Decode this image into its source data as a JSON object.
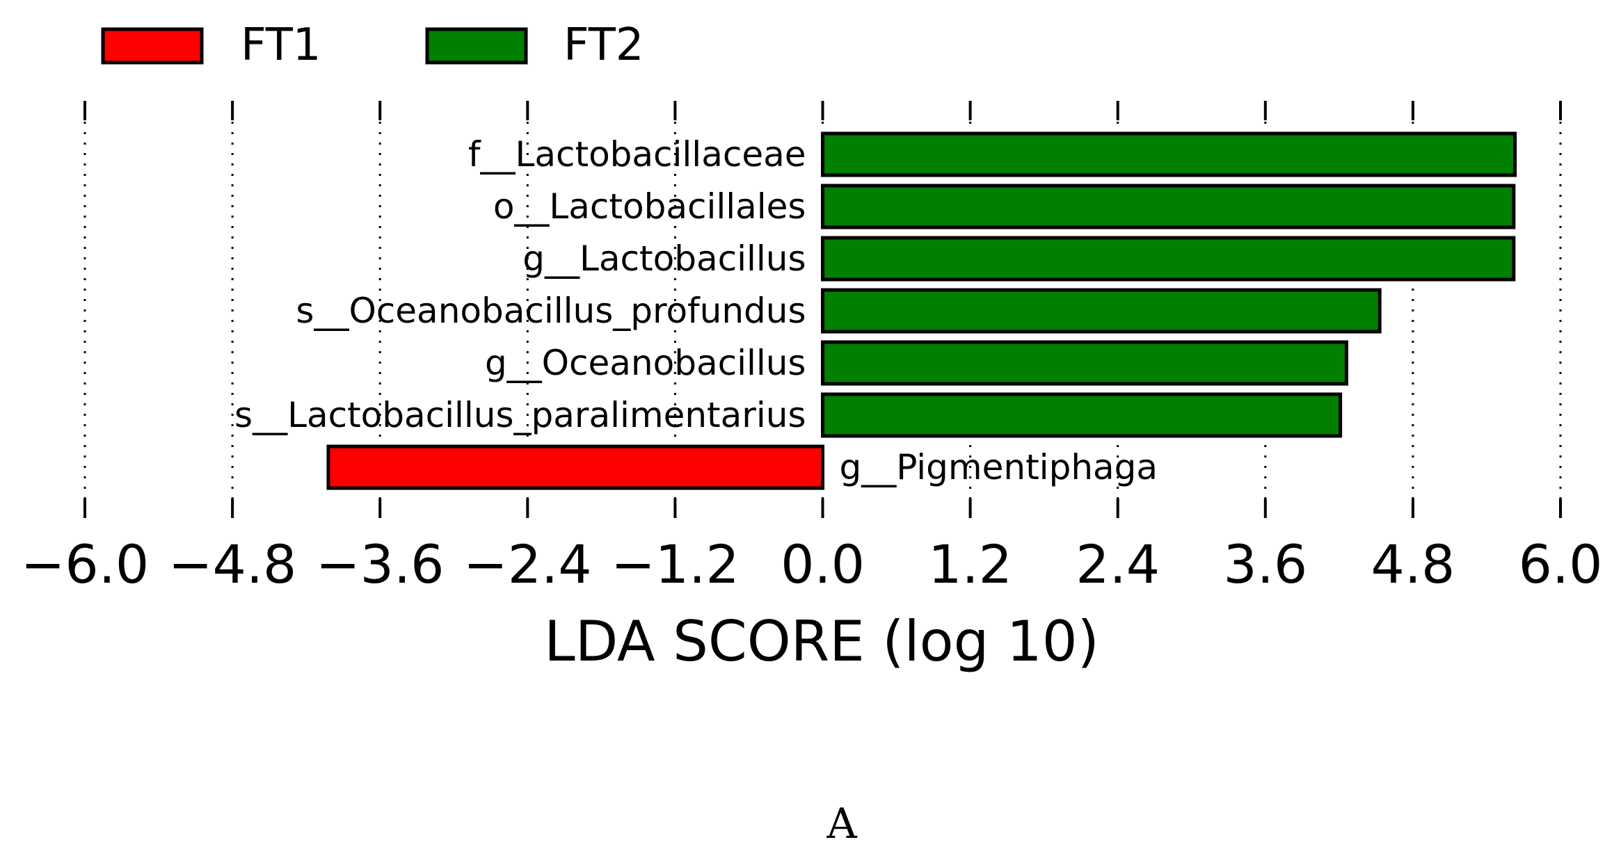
{
  "colors": {
    "FT1": "#ff0000",
    "FT2": "#007f00",
    "grid": "#000000",
    "background": "#ffffff"
  },
  "chart_data": {
    "type": "bar",
    "orientation": "horizontal",
    "legend": {
      "placement": "top-left",
      "entries": [
        {
          "name": "FT1",
          "color": "#ff0000"
        },
        {
          "name": "FT2",
          "color": "#007f00"
        }
      ]
    },
    "categories": [
      "f__Lactobacillaceae",
      "o__Lactobacillales",
      "g__Lactobacillus",
      "s__Oceanobacillus_profundus",
      "g__Oceanobacillus",
      "s__Lactobacillus_paralimentarius",
      "g__Pigmentiphaga"
    ],
    "values": [
      5.63,
      5.62,
      5.62,
      4.53,
      4.26,
      4.21,
      -4.02
    ],
    "groups": [
      "FT2",
      "FT2",
      "FT2",
      "FT2",
      "FT2",
      "FT2",
      "FT1"
    ],
    "xlim": [
      -6.0,
      6.0
    ],
    "xticks": [
      -6.0,
      -4.8,
      -3.6,
      -2.4,
      -1.2,
      0.0,
      1.2,
      2.4,
      3.6,
      4.8,
      6.0
    ],
    "xticklabels": [
      "−6.0",
      "−4.8",
      "−3.6",
      "−2.4",
      "−1.2",
      "0.0",
      "1.2",
      "2.4",
      "3.6",
      "4.8",
      "6.0"
    ],
    "xlabel": "LDA SCORE (log 10)",
    "grid": "vertical dotted"
  },
  "caption": "A"
}
